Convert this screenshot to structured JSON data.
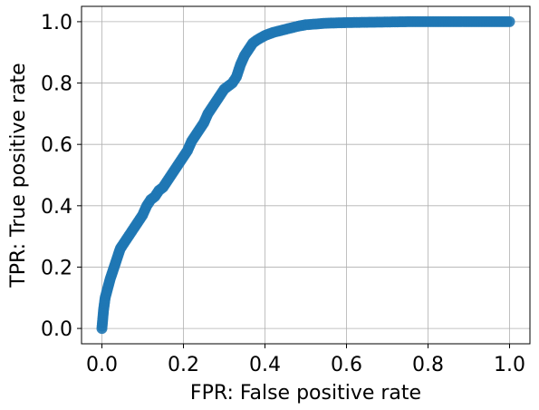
{
  "chart_data": {
    "type": "scatter",
    "title": "",
    "xlabel": "FPR: False positive rate",
    "ylabel": "TPR: True positive rate",
    "xlim": [
      -0.05,
      1.05
    ],
    "ylim": [
      -0.05,
      1.05
    ],
    "grid": true,
    "xticks": [
      "0.0",
      "0.2",
      "0.4",
      "0.6",
      "0.8",
      "1.0"
    ],
    "yticks": [
      "0.0",
      "0.2",
      "0.4",
      "0.6",
      "0.8",
      "1.0"
    ],
    "series": [
      {
        "color": "#1f77b4",
        "points": [
          [
            0.0,
            0.0
          ],
          [
            0.002,
            0.03
          ],
          [
            0.004,
            0.06
          ],
          [
            0.006,
            0.08
          ],
          [
            0.008,
            0.1
          ],
          [
            0.012,
            0.12
          ],
          [
            0.016,
            0.14
          ],
          [
            0.02,
            0.16
          ],
          [
            0.025,
            0.18
          ],
          [
            0.03,
            0.2
          ],
          [
            0.035,
            0.22
          ],
          [
            0.04,
            0.24
          ],
          [
            0.045,
            0.26
          ],
          [
            0.05,
            0.27
          ],
          [
            0.06,
            0.29
          ],
          [
            0.07,
            0.31
          ],
          [
            0.08,
            0.33
          ],
          [
            0.09,
            0.35
          ],
          [
            0.1,
            0.37
          ],
          [
            0.11,
            0.4
          ],
          [
            0.12,
            0.42
          ],
          [
            0.13,
            0.43
          ],
          [
            0.14,
            0.45
          ],
          [
            0.15,
            0.46
          ],
          [
            0.16,
            0.48
          ],
          [
            0.17,
            0.5
          ],
          [
            0.18,
            0.52
          ],
          [
            0.19,
            0.54
          ],
          [
            0.2,
            0.56
          ],
          [
            0.21,
            0.58
          ],
          [
            0.22,
            0.61
          ],
          [
            0.23,
            0.63
          ],
          [
            0.24,
            0.65
          ],
          [
            0.25,
            0.67
          ],
          [
            0.26,
            0.7
          ],
          [
            0.27,
            0.72
          ],
          [
            0.28,
            0.74
          ],
          [
            0.29,
            0.76
          ],
          [
            0.3,
            0.78
          ],
          [
            0.31,
            0.79
          ],
          [
            0.32,
            0.8
          ],
          [
            0.33,
            0.82
          ],
          [
            0.34,
            0.86
          ],
          [
            0.35,
            0.89
          ],
          [
            0.36,
            0.91
          ],
          [
            0.37,
            0.93
          ],
          [
            0.38,
            0.94
          ],
          [
            0.4,
            0.955
          ],
          [
            0.42,
            0.965
          ],
          [
            0.45,
            0.975
          ],
          [
            0.48,
            0.985
          ],
          [
            0.5,
            0.99
          ],
          [
            0.55,
            0.995
          ],
          [
            0.6,
            0.997
          ],
          [
            0.65,
            0.998
          ],
          [
            0.7,
            0.999
          ],
          [
            0.75,
            1.0
          ],
          [
            0.8,
            1.0
          ],
          [
            0.85,
            1.0
          ],
          [
            0.9,
            1.0
          ],
          [
            0.95,
            1.0
          ],
          [
            1.0,
            1.0
          ]
        ]
      }
    ]
  }
}
